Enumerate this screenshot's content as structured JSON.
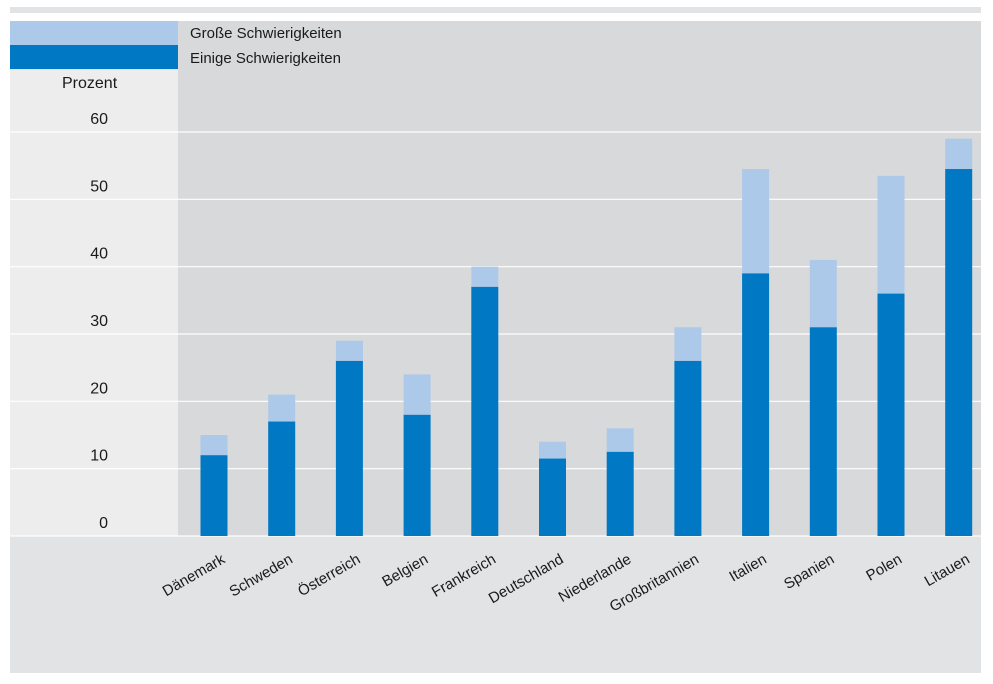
{
  "legend": {
    "items": [
      {
        "label": "Große Schwierigkeiten",
        "color": "#adc9ea"
      },
      {
        "label": "Einige Schwierigkeiten",
        "color": "#0078c3"
      }
    ]
  },
  "y_unit": "Prozent",
  "chart_data": {
    "type": "bar",
    "stacked": true,
    "categories": [
      "Dänemark",
      "Schweden",
      "Österreich",
      "Belgien",
      "Frankreich",
      "Deutschland",
      "Niederlande",
      "Großbritannien",
      "Italien",
      "Spanien",
      "Polen",
      "Litauen"
    ],
    "series": [
      {
        "name": "Einige Schwierigkeiten",
        "color": "#0078c3",
        "values": [
          12,
          17,
          26,
          18,
          37,
          11.5,
          12.5,
          26,
          39,
          31,
          36,
          54.5
        ]
      },
      {
        "name": "Große Schwierigkeiten",
        "color": "#adc9ea",
        "values": [
          3,
          4,
          3,
          6,
          3,
          2.5,
          3.5,
          5,
          15.5,
          10,
          17.5,
          4.5
        ]
      }
    ],
    "ylabel": "Prozent",
    "ylim": [
      0,
      60
    ],
    "yticks": [
      0,
      10,
      20,
      30,
      40,
      50,
      60
    ],
    "grid": true,
    "legend_position": "top-left"
  }
}
